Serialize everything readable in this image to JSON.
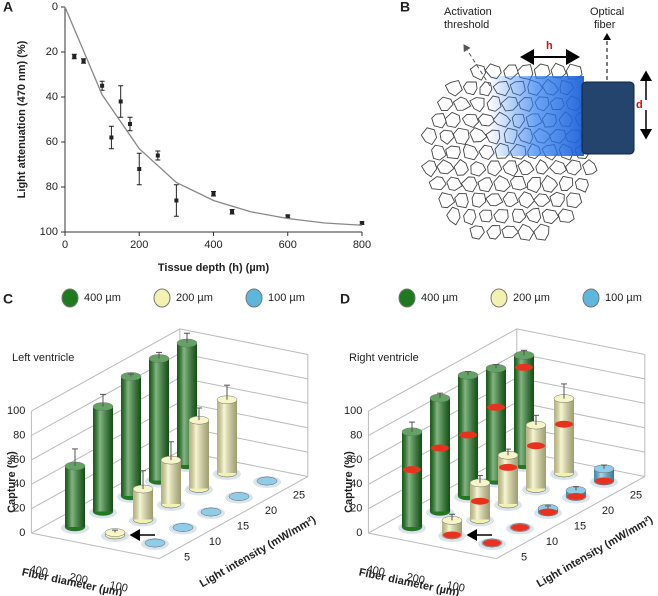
{
  "chart_data": [
    {
      "type": "scatter",
      "panel": "A",
      "x_label": "Tissue depth (h) (µm)",
      "y_label": "Light attenuation (470 nm) (%)",
      "xlim": [
        0,
        800
      ],
      "ylim": [
        0,
        100
      ],
      "y_inverted": true,
      "xticks": [
        0,
        200,
        400,
        600,
        800
      ],
      "yticks": [
        0,
        20,
        40,
        60,
        80,
        100
      ],
      "series": [
        {
          "kind": "points",
          "color": "#222222",
          "x": [
            25,
            50,
            100,
            125,
            150,
            175,
            200,
            250,
            300,
            400,
            450,
            600,
            800
          ],
          "values": [
            22,
            24,
            35,
            58,
            42,
            52,
            72,
            66,
            86,
            83,
            91,
            93,
            96
          ],
          "errors": [
            1,
            1,
            2,
            5,
            7,
            3,
            7,
            2,
            7,
            1,
            1,
            0.5,
            0.5
          ]
        },
        {
          "kind": "line",
          "color": "#888888",
          "x": [
            0,
            100,
            200,
            300,
            400,
            500,
            600,
            700,
            800
          ],
          "values": [
            0,
            39,
            63,
            78,
            86,
            91,
            94,
            96,
            97
          ]
        }
      ]
    },
    {
      "type": "bar3d",
      "panel": "C",
      "subtitle": "Left ventricle",
      "y_label": "Capture (%)",
      "x_label": "Light intensity (mW/mm²)",
      "depth_label": "Fiber diameter (µm)",
      "categories": [
        "5",
        "10",
        "15",
        "20",
        "25"
      ],
      "depth_categories": [
        "400",
        "200",
        "100"
      ],
      "ylim": [
        0,
        100
      ],
      "yticks": [
        0,
        20,
        40,
        60,
        80,
        100
      ],
      "series": [
        {
          "name": "400 µm",
          "color": "#1f7a1f",
          "values": [
            50,
            86,
            98,
            100,
            100
          ],
          "errors": [
            14,
            10,
            2,
            5,
            8
          ]
        },
        {
          "name": "200 µm",
          "color": "#f3f1b0",
          "values": [
            2,
            25,
            36,
            56,
            60
          ],
          "errors": [
            2,
            15,
            15,
            10,
            12
          ]
        },
        {
          "name": "100 µm",
          "color": "#5fb6dd",
          "values": [
            0,
            0,
            0,
            0,
            0
          ],
          "errors": [
            0,
            0,
            0,
            0,
            0
          ]
        }
      ]
    },
    {
      "type": "bar3d",
      "panel": "D",
      "subtitle": "Right ventricle",
      "y_label": "Capture (%)",
      "x_label": "Light intensity (mW/mm²)",
      "depth_label": "Fiber diameter (µm)",
      "categories": [
        "5",
        "10",
        "15",
        "20",
        "25"
      ],
      "depth_categories": [
        "400",
        "200",
        "100"
      ],
      "ylim": [
        0,
        100
      ],
      "yticks": [
        0,
        20,
        40,
        60,
        80,
        100
      ],
      "marker_color": "#e8321e",
      "series": [
        {
          "name": "400 µm",
          "color": "#1f7a1f",
          "values": [
            78,
            93,
            99,
            92,
            90
          ],
          "errors": [
            8,
            4,
            3,
            3,
            4
          ],
          "marker_values": [
            47,
            52,
            50,
            60,
            80
          ]
        },
        {
          "name": "200 µm",
          "color": "#f3f1b0",
          "values": [
            12,
            30,
            40,
            52,
            61
          ],
          "errors": [
            5,
            6,
            5,
            8,
            12
          ],
          "marker_values": [
            0,
            15,
            30,
            35,
            40
          ]
        },
        {
          "name": "100 µm",
          "color": "#5fb6dd",
          "values": [
            0,
            0,
            3,
            5,
            10
          ],
          "errors": [
            0,
            0,
            2,
            3,
            3
          ],
          "marker_values": [
            0,
            0,
            0,
            0,
            0
          ]
        }
      ]
    }
  ],
  "diagram": {
    "panel": "B",
    "activation_label": [
      "Activation",
      "threshold"
    ],
    "fiber_label": [
      "Optical",
      "fiber"
    ],
    "h_label": "h",
    "d_label": "d"
  }
}
